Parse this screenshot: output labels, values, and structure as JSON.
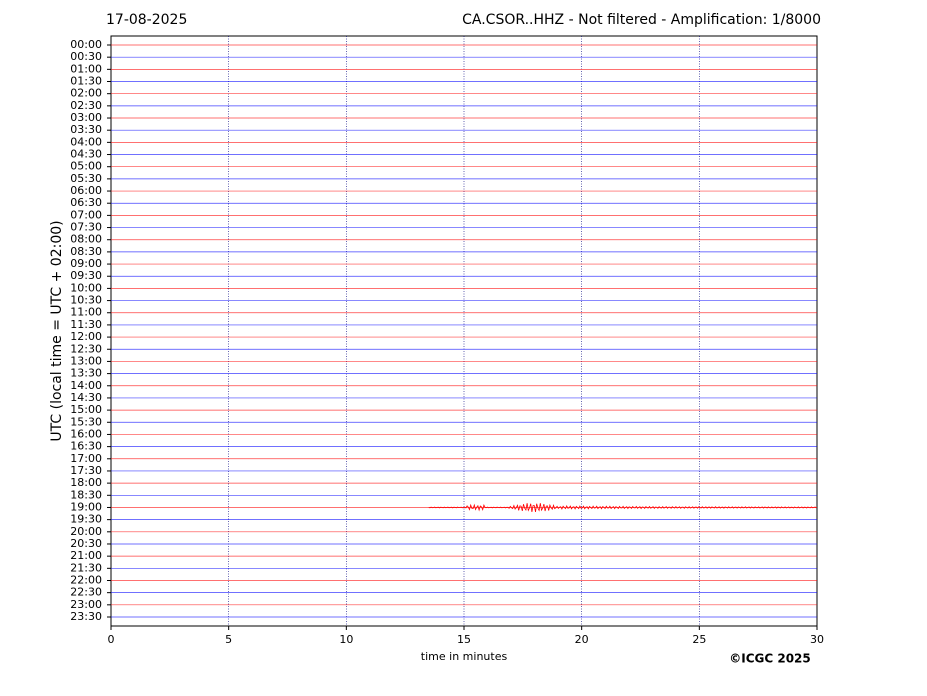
{
  "chart_data": {
    "type": "helicorder",
    "title": "17-08-2025",
    "subtitle": "CA.CSOR..HHZ - Not filtered - Amplification: 1/8000",
    "y_label": "UTC (local time = UTC + 02:00)",
    "x_label": "time in minutes",
    "credit": "©ICGC 2025",
    "categories": [
      "00:00",
      "00:30",
      "01:00",
      "01:30",
      "02:00",
      "02:30",
      "03:00",
      "03:30",
      "04:00",
      "04:30",
      "05:00",
      "05:30",
      "06:00",
      "06:30",
      "07:00",
      "07:30",
      "08:00",
      "08:30",
      "09:00",
      "09:30",
      "10:00",
      "10:30",
      "11:00",
      "11:30",
      "12:00",
      "12:30",
      "13:00",
      "13:30",
      "14:00",
      "14:30",
      "15:00",
      "15:30",
      "16:00",
      "16:30",
      "17:00",
      "17:30",
      "18:00",
      "18:30",
      "19:00",
      "19:30",
      "20:00",
      "20:30",
      "21:00",
      "21:30",
      "22:00",
      "22:30",
      "23:00",
      "23:30"
    ],
    "colors": [
      "#ff0000",
      "#0000ff"
    ],
    "event_start": 13.5,
    "xlim": [
      0,
      30
    ],
    "xticks": [
      0,
      5,
      10,
      15,
      20,
      25,
      30
    ],
    "grid": true
  }
}
